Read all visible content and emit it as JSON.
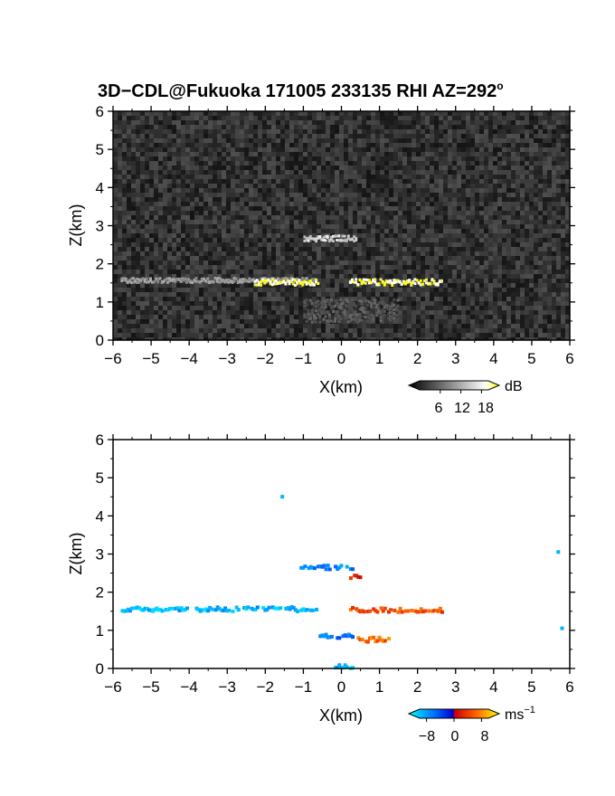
{
  "figure": {
    "title_main": "3D−CDL@Fukuoka 171005 233135 RHI AZ=292",
    "title_sup": "o"
  },
  "chart_data": [
    {
      "type": "heatmap",
      "name": "snr",
      "xlabel": "X(km)",
      "ylabel": "Z(km)",
      "xlim": [
        -6,
        6
      ],
      "ylim": [
        0,
        6
      ],
      "xticks": [
        "−6",
        "−5",
        "−4",
        "−3",
        "−2",
        "−1",
        "0",
        "1",
        "2",
        "3",
        "4",
        "5",
        "6"
      ],
      "yticks": [
        "0",
        "1",
        "2",
        "3",
        "4",
        "5",
        "6"
      ],
      "colorbar": {
        "unit": "dB",
        "tick_labels": [
          "6",
          "12",
          "18"
        ],
        "tick_values": [
          6,
          12,
          18
        ],
        "range": [
          0,
          20
        ],
        "colors": [
          "#000000",
          "#ffffff",
          "#ffff00"
        ]
      },
      "features": [
        {
          "x": [
            -5.8,
            -0.7
          ],
          "z": 1.6,
          "level": "weak"
        },
        {
          "x": [
            -2.3,
            -0.6
          ],
          "z": 1.55,
          "level": "strong"
        },
        {
          "x": [
            0.2,
            2.6
          ],
          "z": 1.55,
          "level": "strong"
        },
        {
          "x": [
            -1.0,
            0.4
          ],
          "z": 2.7,
          "level": "moderate"
        },
        {
          "x": [
            -1.0,
            1.5
          ],
          "z": 0.8,
          "level": "diffuse"
        }
      ]
    },
    {
      "type": "scatter",
      "name": "velocity",
      "xlabel": "X(km)",
      "ylabel": "Z(km)",
      "xlim": [
        -6,
        6
      ],
      "ylim": [
        0,
        6
      ],
      "xticks": [
        "−6",
        "−5",
        "−4",
        "−3",
        "−2",
        "−1",
        "0",
        "1",
        "2",
        "3",
        "4",
        "5",
        "6"
      ],
      "yticks": [
        "0",
        "1",
        "2",
        "3",
        "4",
        "5",
        "6"
      ],
      "colorbar": {
        "unit": "ms",
        "unit_exp": "−1",
        "tick_labels": [
          "−8",
          "0",
          "8"
        ],
        "tick_values": [
          -8,
          0,
          8
        ],
        "range": [
          -10,
          10
        ],
        "colors": [
          "#00ffff",
          "#0066ff",
          "#0000cc",
          "#cc0000",
          "#ff6600",
          "#ffff00"
        ]
      },
      "features": [
        {
          "x": [
            -5.8,
            -0.6
          ],
          "z": 1.6,
          "velocity": -7
        },
        {
          "x": [
            0.2,
            2.6
          ],
          "z": 1.58,
          "velocity": 4
        },
        {
          "x": [
            -1.1,
            0.3
          ],
          "z": 2.7,
          "velocity": -5
        },
        {
          "x": [
            0.2,
            0.45
          ],
          "z": 2.45,
          "velocity": 1
        },
        {
          "x": [
            -0.6,
            0.3
          ],
          "z": 0.9,
          "velocity": -4
        },
        {
          "x": [
            0.4,
            1.3
          ],
          "z": 0.8,
          "velocity": 5
        },
        {
          "x": [
            -0.2,
            0.3
          ],
          "z": 0.1,
          "velocity": -7
        }
      ],
      "points": [
        {
          "x": -1.6,
          "z": 4.55,
          "velocity": -7
        },
        {
          "x": 5.65,
          "z": 3.1,
          "velocity": -7
        },
        {
          "x": 5.75,
          "z": 1.1,
          "velocity": -7
        }
      ]
    }
  ]
}
